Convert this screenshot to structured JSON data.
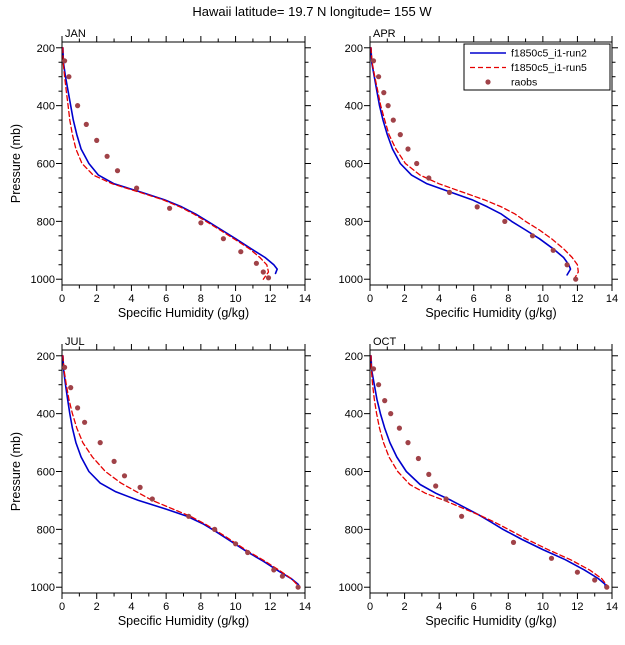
{
  "title": "Hawaii  latitude= 19.7 N longitude= 155 W",
  "axes": {
    "xlabel": "Specific Humidity (g/kg)",
    "ylabel": "Pressure (mb)",
    "xlim": [
      0,
      14
    ],
    "ylim": [
      180,
      1020
    ],
    "xticks": [
      0,
      2,
      4,
      6,
      8,
      10,
      12,
      14
    ],
    "yticks": [
      200,
      400,
      600,
      800,
      1000
    ],
    "x_minor_step": 1,
    "y_minor_step": 50,
    "y_axis_inverted_pressure": true,
    "grid": false
  },
  "colors": {
    "run2": "#0000cd",
    "run5": "#e60000",
    "raobs": "#a04248"
  },
  "legend": {
    "position": "top-right-of-APR-panel",
    "entries": [
      {
        "label": "f1850c5_i1-run2",
        "sample": "line-solid",
        "color_key": "run2"
      },
      {
        "label": "f1850c5_i1-run5",
        "sample": "line-dashed",
        "color_key": "run5"
      },
      {
        "label": "raobs",
        "sample": "marker",
        "color_key": "raobs"
      }
    ]
  },
  "chart_data": [
    {
      "type": "line",
      "panel": "JAN",
      "series": [
        {
          "name": "f1850c5_i1-run2",
          "style": "solid",
          "color_key": "run2",
          "points_qp": [
            [
              0.05,
              200
            ],
            [
              0.08,
              250
            ],
            [
              0.2,
              300
            ],
            [
              0.35,
              350
            ],
            [
              0.5,
              400
            ],
            [
              0.65,
              450
            ],
            [
              0.85,
              500
            ],
            [
              1.1,
              550
            ],
            [
              1.55,
              600
            ],
            [
              2.1,
              640
            ],
            [
              3.0,
              670
            ],
            [
              4.6,
              700
            ],
            [
              5.9,
              725
            ],
            [
              6.9,
              750
            ],
            [
              7.7,
              775
            ],
            [
              8.4,
              800
            ],
            [
              9.2,
              830
            ],
            [
              10.0,
              860
            ],
            [
              10.9,
              895
            ],
            [
              11.7,
              925
            ],
            [
              12.2,
              950
            ],
            [
              12.4,
              965
            ],
            [
              12.3,
              980
            ]
          ]
        },
        {
          "name": "f1850c5_i1-run5",
          "style": "dashed",
          "color_key": "run5",
          "points_qp": [
            [
              0.05,
              200
            ],
            [
              0.07,
              250
            ],
            [
              0.15,
              300
            ],
            [
              0.25,
              350
            ],
            [
              0.35,
              400
            ],
            [
              0.45,
              450
            ],
            [
              0.6,
              500
            ],
            [
              0.8,
              550
            ],
            [
              1.15,
              600
            ],
            [
              1.8,
              640
            ],
            [
              2.9,
              670
            ],
            [
              4.5,
              700
            ],
            [
              5.8,
              725
            ],
            [
              6.8,
              750
            ],
            [
              7.6,
              775
            ],
            [
              8.3,
              800
            ],
            [
              9.1,
              830
            ],
            [
              9.9,
              860
            ],
            [
              10.8,
              895
            ],
            [
              11.4,
              925
            ],
            [
              11.8,
              950
            ],
            [
              11.9,
              975
            ],
            [
              11.6,
              1000
            ]
          ]
        },
        {
          "name": "raobs",
          "style": "marker",
          "color_key": "raobs",
          "points_qp": [
            [
              0.15,
              245
            ],
            [
              0.4,
              300
            ],
            [
              0.9,
              400
            ],
            [
              1.4,
              465
            ],
            [
              2.0,
              520
            ],
            [
              2.6,
              575
            ],
            [
              3.2,
              625
            ],
            [
              4.3,
              685
            ],
            [
              6.2,
              755
            ],
            [
              8.0,
              805
            ],
            [
              9.3,
              860
            ],
            [
              10.3,
              905
            ],
            [
              11.2,
              945
            ],
            [
              11.6,
              975
            ],
            [
              11.9,
              995
            ]
          ]
        }
      ]
    },
    {
      "type": "line",
      "panel": "APR",
      "series": [
        {
          "name": "f1850c5_i1-run2",
          "style": "solid",
          "color_key": "run2",
          "points_qp": [
            [
              0.06,
              200
            ],
            [
              0.1,
              250
            ],
            [
              0.25,
              300
            ],
            [
              0.4,
              350
            ],
            [
              0.55,
              400
            ],
            [
              0.75,
              450
            ],
            [
              1.0,
              500
            ],
            [
              1.3,
              550
            ],
            [
              1.75,
              600
            ],
            [
              2.4,
              640
            ],
            [
              3.3,
              670
            ],
            [
              4.7,
              700
            ],
            [
              5.9,
              725
            ],
            [
              6.8,
              750
            ],
            [
              7.6,
              775
            ],
            [
              8.2,
              800
            ],
            [
              9.0,
              830
            ],
            [
              9.8,
              860
            ],
            [
              10.6,
              895
            ],
            [
              11.2,
              925
            ],
            [
              11.5,
              950
            ],
            [
              11.6,
              965
            ],
            [
              11.4,
              985
            ]
          ]
        },
        {
          "name": "f1850c5_i1-run5",
          "style": "dashed",
          "color_key": "run5",
          "points_qp": [
            [
              0.06,
              200
            ],
            [
              0.12,
              250
            ],
            [
              0.28,
              300
            ],
            [
              0.45,
              350
            ],
            [
              0.62,
              400
            ],
            [
              0.85,
              450
            ],
            [
              1.1,
              500
            ],
            [
              1.5,
              550
            ],
            [
              2.05,
              600
            ],
            [
              2.9,
              640
            ],
            [
              4.0,
              670
            ],
            [
              5.4,
              700
            ],
            [
              6.6,
              725
            ],
            [
              7.6,
              750
            ],
            [
              8.4,
              775
            ],
            [
              9.0,
              800
            ],
            [
              9.8,
              830
            ],
            [
              10.5,
              860
            ],
            [
              11.2,
              895
            ],
            [
              11.7,
              925
            ],
            [
              12.0,
              950
            ],
            [
              12.05,
              975
            ],
            [
              11.8,
              1000
            ]
          ]
        },
        {
          "name": "raobs",
          "style": "marker",
          "color_key": "raobs",
          "points_qp": [
            [
              0.2,
              245
            ],
            [
              0.5,
              300
            ],
            [
              0.8,
              355
            ],
            [
              1.05,
              400
            ],
            [
              1.35,
              450
            ],
            [
              1.75,
              500
            ],
            [
              2.2,
              550
            ],
            [
              2.7,
              600
            ],
            [
              3.4,
              650
            ],
            [
              4.6,
              700
            ],
            [
              6.2,
              750
            ],
            [
              7.8,
              800
            ],
            [
              9.4,
              850
            ],
            [
              10.6,
              900
            ],
            [
              11.4,
              950
            ],
            [
              11.9,
              1000
            ]
          ]
        }
      ]
    },
    {
      "type": "line",
      "panel": "JUL",
      "series": [
        {
          "name": "f1850c5_i1-run2",
          "style": "solid",
          "color_key": "run2",
          "points_qp": [
            [
              0.05,
              200
            ],
            [
              0.1,
              250
            ],
            [
              0.2,
              300
            ],
            [
              0.32,
              350
            ],
            [
              0.45,
              400
            ],
            [
              0.6,
              450
            ],
            [
              0.8,
              500
            ],
            [
              1.1,
              550
            ],
            [
              1.55,
              600
            ],
            [
              2.2,
              640
            ],
            [
              3.1,
              670
            ],
            [
              4.4,
              700
            ],
            [
              6.0,
              730
            ],
            [
              7.2,
              755
            ],
            [
              8.1,
              780
            ],
            [
              8.8,
              805
            ],
            [
              9.7,
              840
            ],
            [
              10.6,
              875
            ],
            [
              11.6,
              910
            ],
            [
              12.5,
              945
            ],
            [
              13.2,
              970
            ],
            [
              13.6,
              990
            ],
            [
              13.7,
              1000
            ]
          ]
        },
        {
          "name": "f1850c5_i1-run5",
          "style": "dashed",
          "color_key": "run5",
          "points_qp": [
            [
              0.05,
              200
            ],
            [
              0.12,
              250
            ],
            [
              0.25,
              300
            ],
            [
              0.4,
              350
            ],
            [
              0.6,
              400
            ],
            [
              0.85,
              450
            ],
            [
              1.2,
              500
            ],
            [
              1.75,
              550
            ],
            [
              2.5,
              600
            ],
            [
              3.4,
              640
            ],
            [
              4.3,
              670
            ],
            [
              5.2,
              700
            ],
            [
              6.4,
              730
            ],
            [
              7.4,
              755
            ],
            [
              8.2,
              780
            ],
            [
              8.9,
              805
            ],
            [
              9.8,
              840
            ],
            [
              10.7,
              875
            ],
            [
              11.7,
              910
            ],
            [
              12.6,
              945
            ],
            [
              13.2,
              970
            ],
            [
              13.7,
              1000
            ]
          ]
        },
        {
          "name": "raobs",
          "style": "marker",
          "color_key": "raobs",
          "points_qp": [
            [
              0.15,
              240
            ],
            [
              0.5,
              310
            ],
            [
              0.9,
              380
            ],
            [
              1.3,
              430
            ],
            [
              2.2,
              500
            ],
            [
              3.0,
              565
            ],
            [
              3.6,
              615
            ],
            [
              4.5,
              655
            ],
            [
              5.2,
              695
            ],
            [
              7.3,
              755
            ],
            [
              8.8,
              800
            ],
            [
              10.0,
              850
            ],
            [
              10.7,
              880
            ],
            [
              12.2,
              940
            ],
            [
              12.7,
              962
            ],
            [
              13.6,
              1000
            ]
          ]
        }
      ]
    },
    {
      "type": "line",
      "panel": "OCT",
      "series": [
        {
          "name": "f1850c5_i1-run2",
          "style": "solid",
          "color_key": "run2",
          "points_qp": [
            [
              0.06,
              200
            ],
            [
              0.1,
              250
            ],
            [
              0.25,
              300
            ],
            [
              0.4,
              350
            ],
            [
              0.6,
              400
            ],
            [
              0.85,
              450
            ],
            [
              1.15,
              500
            ],
            [
              1.55,
              550
            ],
            [
              2.1,
              600
            ],
            [
              2.9,
              645
            ],
            [
              3.8,
              675
            ],
            [
              4.7,
              700
            ],
            [
              5.5,
              725
            ],
            [
              6.3,
              750
            ],
            [
              7.0,
              775
            ],
            [
              7.7,
              800
            ],
            [
              8.8,
              835
            ],
            [
              10.0,
              870
            ],
            [
              11.3,
              905
            ],
            [
              12.4,
              940
            ],
            [
              13.2,
              970
            ],
            [
              13.6,
              990
            ],
            [
              13.6,
              1000
            ]
          ]
        },
        {
          "name": "f1850c5_i1-run5",
          "style": "dashed",
          "color_key": "run5",
          "points_qp": [
            [
              0.06,
              200
            ],
            [
              0.08,
              250
            ],
            [
              0.15,
              300
            ],
            [
              0.25,
              350
            ],
            [
              0.38,
              400
            ],
            [
              0.55,
              450
            ],
            [
              0.78,
              500
            ],
            [
              1.1,
              550
            ],
            [
              1.6,
              600
            ],
            [
              2.3,
              645
            ],
            [
              3.2,
              675
            ],
            [
              4.3,
              700
            ],
            [
              5.3,
              725
            ],
            [
              6.3,
              750
            ],
            [
              7.2,
              775
            ],
            [
              8.0,
              800
            ],
            [
              9.1,
              835
            ],
            [
              10.3,
              870
            ],
            [
              11.6,
              905
            ],
            [
              12.7,
              940
            ],
            [
              13.4,
              970
            ],
            [
              13.8,
              1000
            ]
          ]
        },
        {
          "name": "raobs",
          "style": "marker",
          "color_key": "raobs",
          "points_qp": [
            [
              0.2,
              245
            ],
            [
              0.5,
              300
            ],
            [
              0.85,
              355
            ],
            [
              1.2,
              400
            ],
            [
              1.7,
              450
            ],
            [
              2.2,
              500
            ],
            [
              2.8,
              555
            ],
            [
              3.4,
              610
            ],
            [
              3.8,
              650
            ],
            [
              4.4,
              695
            ],
            [
              5.3,
              755
            ],
            [
              8.3,
              845
            ],
            [
              10.5,
              900
            ],
            [
              12.0,
              948
            ],
            [
              13.0,
              975
            ],
            [
              13.7,
              1000
            ]
          ]
        }
      ]
    }
  ]
}
